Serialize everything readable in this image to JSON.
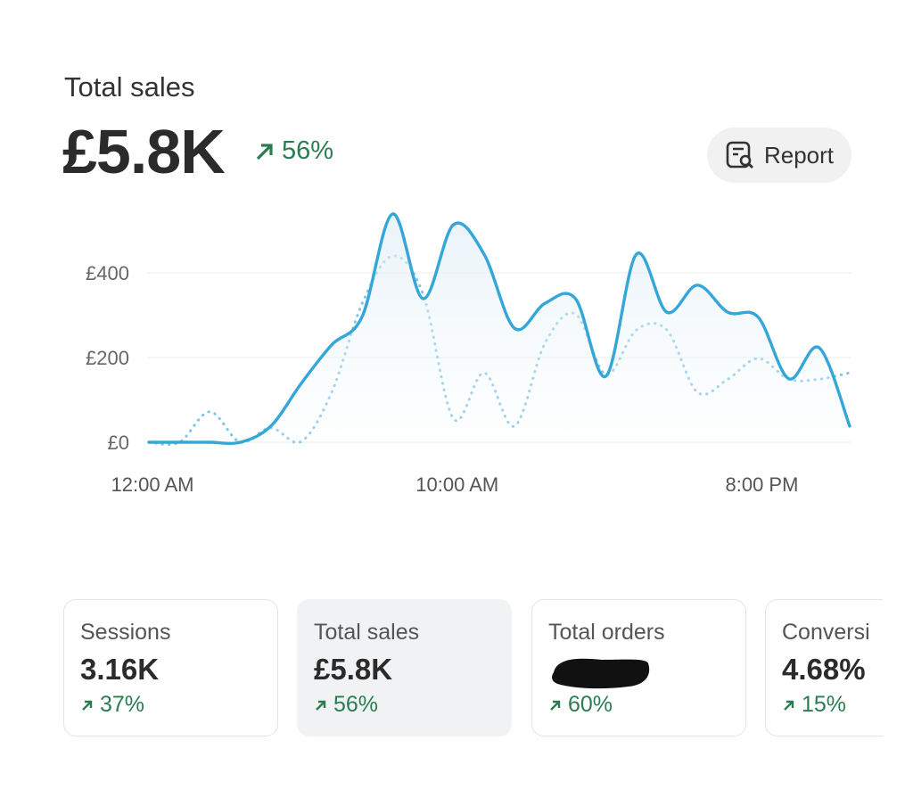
{
  "header": {
    "title": "Total sales",
    "value": "£5.8K",
    "change": "56%"
  },
  "report_button": "Report",
  "chart_data": {
    "type": "line",
    "categories": [
      "12:00 AM",
      null,
      null,
      null,
      null,
      null,
      null,
      null,
      null,
      null,
      "10:00 AM",
      null,
      null,
      null,
      null,
      null,
      null,
      null,
      null,
      null,
      "8:00 PM",
      null,
      null,
      null
    ],
    "series": [
      {
        "color": "#35a6d8",
        "style": "solid",
        "values": [
          0,
          0,
          0,
          0,
          38,
          139,
          230,
          297,
          539,
          339,
          514,
          444,
          269,
          328,
          339,
          156,
          444,
          307,
          371,
          307,
          295,
          150,
          223,
          38
        ]
      },
      {
        "color": "#7fc6e6",
        "style": "dotted",
        "values": [
          0,
          0,
          72,
          0,
          34,
          2,
          118,
          328,
          440,
          349,
          55,
          164,
          38,
          234,
          303,
          160,
          265,
          265,
          118,
          149,
          198,
          149,
          149,
          164
        ]
      }
    ],
    "ylim": [
      0,
      560
    ],
    "yticks": [
      {
        "value": 0,
        "label": "£0"
      },
      {
        "value": 200,
        "label": "£200"
      },
      {
        "value": 400,
        "label": "£400"
      }
    ],
    "grid": true
  },
  "cards": [
    {
      "label": "Sessions",
      "value": "3.16K",
      "change": "37%"
    },
    {
      "label": "Total sales",
      "value": "£5.8K",
      "change": "56%"
    },
    {
      "label": "Total orders",
      "change": "60%"
    },
    {
      "label": "Conversi",
      "value": "4.68%",
      "change": "15%"
    }
  ]
}
